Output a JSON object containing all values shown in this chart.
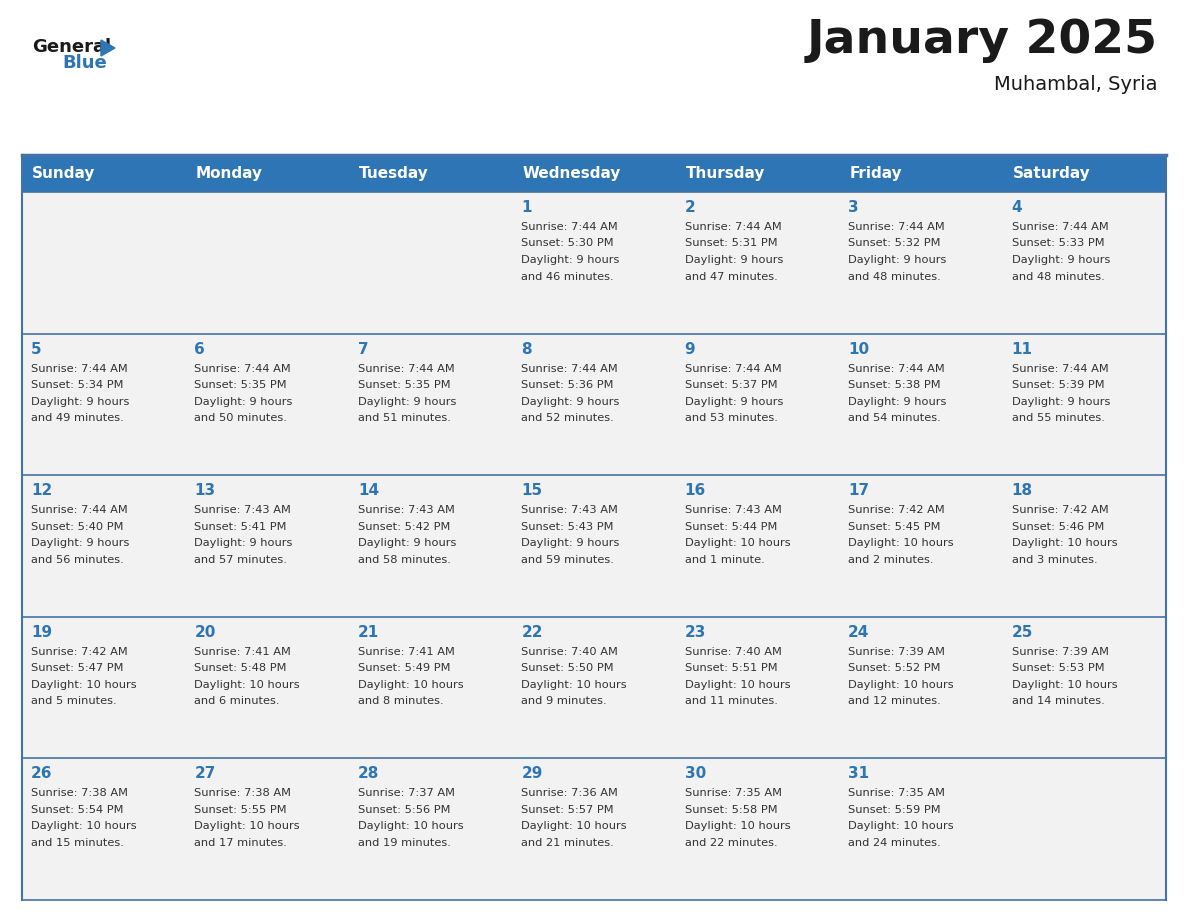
{
  "title": "January 2025",
  "subtitle": "Muhambal, Syria",
  "header_bg": "#2E75B6",
  "header_text_color": "#FFFFFF",
  "day_names": [
    "Sunday",
    "Monday",
    "Tuesday",
    "Wednesday",
    "Thursday",
    "Friday",
    "Saturday"
  ],
  "cell_bg": "#F2F2F2",
  "cell_bg_white": "#FFFFFF",
  "grid_line_color": "#4472A8",
  "day_num_color": "#2E75B6",
  "cell_text_color": "#333333",
  "logo_general_color": "#1A1A1A",
  "logo_blue_color": "#2E75B6",
  "calendar_data": [
    [
      null,
      null,
      null,
      {
        "day": 1,
        "sunrise": "7:44 AM",
        "sunset": "5:30 PM",
        "daylight": "9 hours and 46 minutes."
      },
      {
        "day": 2,
        "sunrise": "7:44 AM",
        "sunset": "5:31 PM",
        "daylight": "9 hours and 47 minutes."
      },
      {
        "day": 3,
        "sunrise": "7:44 AM",
        "sunset": "5:32 PM",
        "daylight": "9 hours and 48 minutes."
      },
      {
        "day": 4,
        "sunrise": "7:44 AM",
        "sunset": "5:33 PM",
        "daylight": "9 hours and 48 minutes."
      }
    ],
    [
      {
        "day": 5,
        "sunrise": "7:44 AM",
        "sunset": "5:34 PM",
        "daylight": "9 hours and 49 minutes."
      },
      {
        "day": 6,
        "sunrise": "7:44 AM",
        "sunset": "5:35 PM",
        "daylight": "9 hours and 50 minutes."
      },
      {
        "day": 7,
        "sunrise": "7:44 AM",
        "sunset": "5:35 PM",
        "daylight": "9 hours and 51 minutes."
      },
      {
        "day": 8,
        "sunrise": "7:44 AM",
        "sunset": "5:36 PM",
        "daylight": "9 hours and 52 minutes."
      },
      {
        "day": 9,
        "sunrise": "7:44 AM",
        "sunset": "5:37 PM",
        "daylight": "9 hours and 53 minutes."
      },
      {
        "day": 10,
        "sunrise": "7:44 AM",
        "sunset": "5:38 PM",
        "daylight": "9 hours and 54 minutes."
      },
      {
        "day": 11,
        "sunrise": "7:44 AM",
        "sunset": "5:39 PM",
        "daylight": "9 hours and 55 minutes."
      }
    ],
    [
      {
        "day": 12,
        "sunrise": "7:44 AM",
        "sunset": "5:40 PM",
        "daylight": "9 hours and 56 minutes."
      },
      {
        "day": 13,
        "sunrise": "7:43 AM",
        "sunset": "5:41 PM",
        "daylight": "9 hours and 57 minutes."
      },
      {
        "day": 14,
        "sunrise": "7:43 AM",
        "sunset": "5:42 PM",
        "daylight": "9 hours and 58 minutes."
      },
      {
        "day": 15,
        "sunrise": "7:43 AM",
        "sunset": "5:43 PM",
        "daylight": "9 hours and 59 minutes."
      },
      {
        "day": 16,
        "sunrise": "7:43 AM",
        "sunset": "5:44 PM",
        "daylight": "10 hours and 1 minute."
      },
      {
        "day": 17,
        "sunrise": "7:42 AM",
        "sunset": "5:45 PM",
        "daylight": "10 hours and 2 minutes."
      },
      {
        "day": 18,
        "sunrise": "7:42 AM",
        "sunset": "5:46 PM",
        "daylight": "10 hours and 3 minutes."
      }
    ],
    [
      {
        "day": 19,
        "sunrise": "7:42 AM",
        "sunset": "5:47 PM",
        "daylight": "10 hours and 5 minutes."
      },
      {
        "day": 20,
        "sunrise": "7:41 AM",
        "sunset": "5:48 PM",
        "daylight": "10 hours and 6 minutes."
      },
      {
        "day": 21,
        "sunrise": "7:41 AM",
        "sunset": "5:49 PM",
        "daylight": "10 hours and 8 minutes."
      },
      {
        "day": 22,
        "sunrise": "7:40 AM",
        "sunset": "5:50 PM",
        "daylight": "10 hours and 9 minutes."
      },
      {
        "day": 23,
        "sunrise": "7:40 AM",
        "sunset": "5:51 PM",
        "daylight": "10 hours and 11 minutes."
      },
      {
        "day": 24,
        "sunrise": "7:39 AM",
        "sunset": "5:52 PM",
        "daylight": "10 hours and 12 minutes."
      },
      {
        "day": 25,
        "sunrise": "7:39 AM",
        "sunset": "5:53 PM",
        "daylight": "10 hours and 14 minutes."
      }
    ],
    [
      {
        "day": 26,
        "sunrise": "7:38 AM",
        "sunset": "5:54 PM",
        "daylight": "10 hours and 15 minutes."
      },
      {
        "day": 27,
        "sunrise": "7:38 AM",
        "sunset": "5:55 PM",
        "daylight": "10 hours and 17 minutes."
      },
      {
        "day": 28,
        "sunrise": "7:37 AM",
        "sunset": "5:56 PM",
        "daylight": "10 hours and 19 minutes."
      },
      {
        "day": 29,
        "sunrise": "7:36 AM",
        "sunset": "5:57 PM",
        "daylight": "10 hours and 21 minutes."
      },
      {
        "day": 30,
        "sunrise": "7:35 AM",
        "sunset": "5:58 PM",
        "daylight": "10 hours and 22 minutes."
      },
      {
        "day": 31,
        "sunrise": "7:35 AM",
        "sunset": "5:59 PM",
        "daylight": "10 hours and 24 minutes."
      },
      null
    ]
  ]
}
